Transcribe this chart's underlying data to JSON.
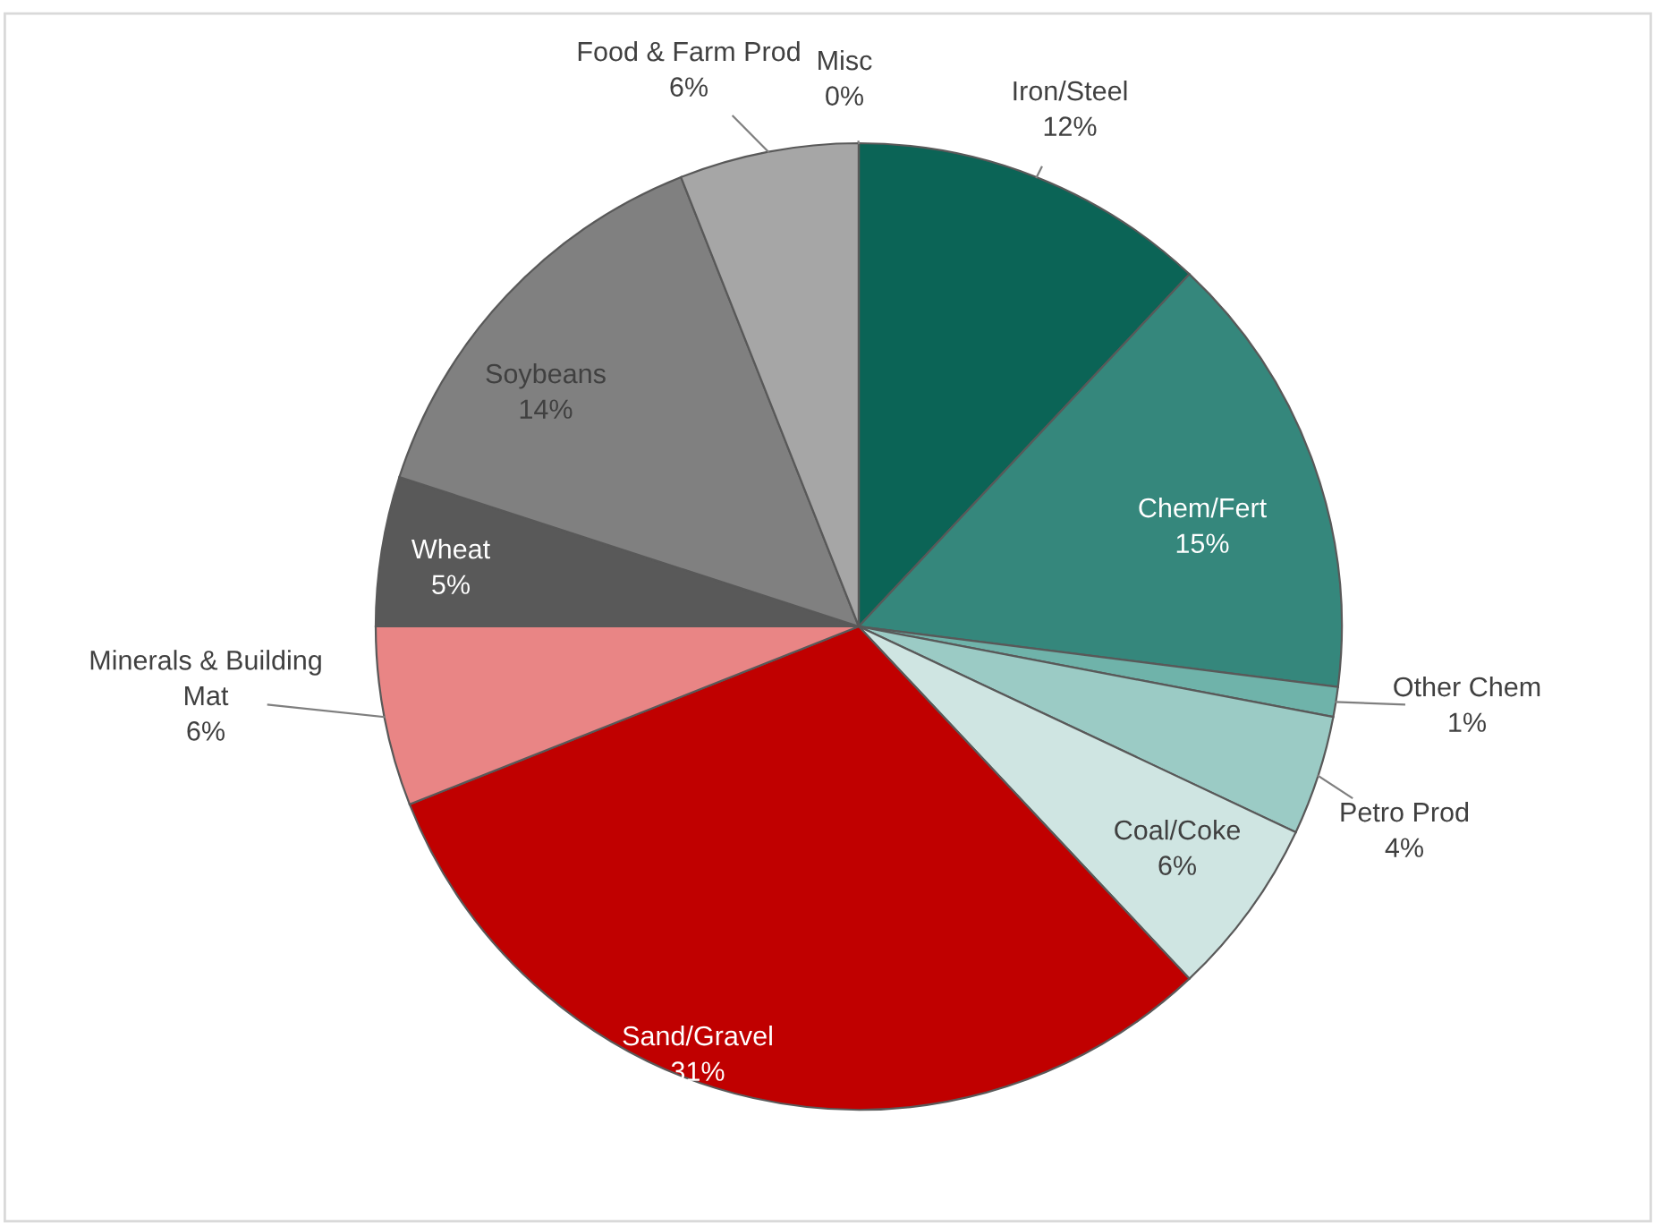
{
  "chart_data": {
    "type": "pie",
    "categories": [
      "Iron/Steel",
      "Chem/Fert",
      "Other Chem",
      "Petro Prod",
      "Coal/Coke",
      "Sand/Gravel",
      "Minerals & Building\nMat",
      "Wheat",
      "Soybeans",
      "Food & Farm Prod",
      "Misc"
    ],
    "values": [
      12,
      15,
      1,
      4,
      6,
      31,
      6,
      5,
      14,
      6,
      0
    ],
    "value_labels": [
      "12%",
      "15%",
      "1%",
      "4%",
      "6%",
      "31%",
      "6%",
      "5%",
      "14%",
      "6%",
      "0%"
    ],
    "colors": [
      "#0b6456",
      "#35877c",
      "#6fb3aa",
      "#9bcbc5",
      "#cfe5e2",
      "#c00000",
      "#e98585",
      "#595959",
      "#808080",
      "#a6a6a6",
      "#d0d0d0"
    ]
  }
}
